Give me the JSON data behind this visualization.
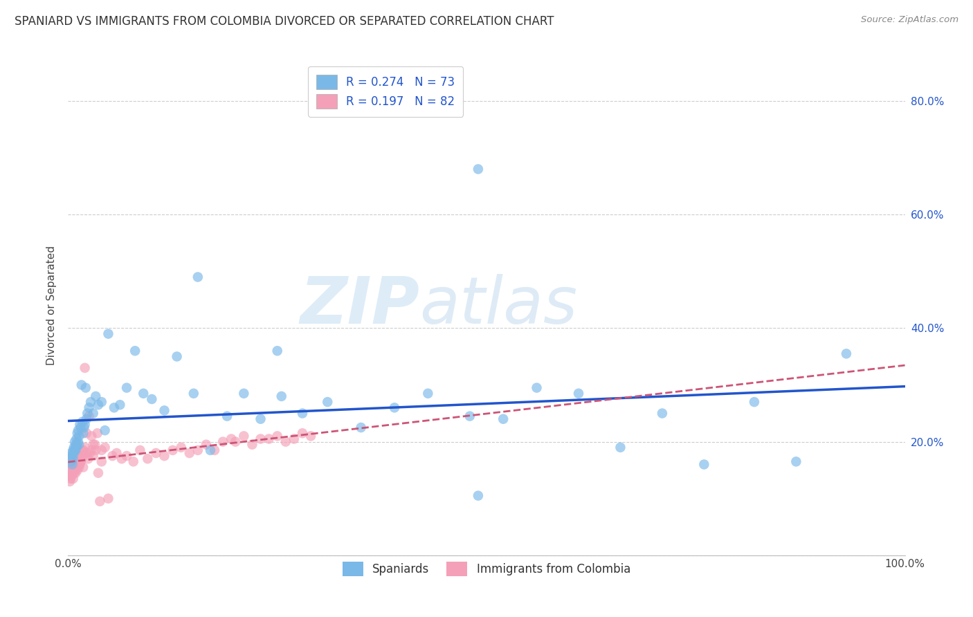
{
  "title": "SPANIARD VS IMMIGRANTS FROM COLOMBIA DIVORCED OR SEPARATED CORRELATION CHART",
  "source": "Source: ZipAtlas.com",
  "ylabel": "Divorced or Separated",
  "xlim": [
    0,
    1.0
  ],
  "ylim": [
    0,
    0.88
  ],
  "xticks": [
    0.0,
    0.2,
    0.4,
    0.6,
    0.8,
    1.0
  ],
  "yticks": [
    0.0,
    0.2,
    0.4,
    0.6,
    0.8
  ],
  "ytick_labels": [
    "",
    "20.0%",
    "40.0%",
    "60.0%",
    "80.0%"
  ],
  "xtick_labels": [
    "0.0%",
    "",
    "",
    "",
    "",
    "100.0%"
  ],
  "blue_color": "#7ab8e8",
  "pink_color": "#f4a0b8",
  "blue_line_color": "#2255cc",
  "pink_line_color": "#cc5577",
  "legend_r1": "R = 0.274",
  "legend_n1": "N = 73",
  "legend_r2": "R = 0.197",
  "legend_n2": "N = 82",
  "legend_label1": "Spaniards",
  "legend_label2": "Immigrants from Colombia",
  "watermark_zip": "ZIP",
  "watermark_atlas": "atlas",
  "background_color": "#ffffff",
  "grid_color": "#cccccc",
  "spaniards_x": [
    0.002,
    0.003,
    0.004,
    0.004,
    0.005,
    0.005,
    0.006,
    0.006,
    0.007,
    0.007,
    0.008,
    0.008,
    0.009,
    0.009,
    0.01,
    0.01,
    0.011,
    0.011,
    0.012,
    0.012,
    0.013,
    0.013,
    0.014,
    0.015,
    0.016,
    0.017,
    0.018,
    0.019,
    0.02,
    0.021,
    0.022,
    0.023,
    0.025,
    0.027,
    0.03,
    0.033,
    0.036,
    0.04,
    0.044,
    0.048,
    0.055,
    0.062,
    0.07,
    0.08,
    0.09,
    0.1,
    0.115,
    0.13,
    0.15,
    0.17,
    0.19,
    0.21,
    0.23,
    0.255,
    0.28,
    0.31,
    0.35,
    0.39,
    0.43,
    0.48,
    0.52,
    0.56,
    0.49,
    0.61,
    0.66,
    0.71,
    0.76,
    0.82,
    0.87,
    0.93,
    0.49,
    0.155,
    0.25
  ],
  "spaniards_y": [
    0.17,
    0.175,
    0.165,
    0.18,
    0.16,
    0.175,
    0.185,
    0.17,
    0.18,
    0.19,
    0.185,
    0.2,
    0.195,
    0.185,
    0.205,
    0.19,
    0.215,
    0.195,
    0.22,
    0.2,
    0.195,
    0.21,
    0.23,
    0.225,
    0.3,
    0.235,
    0.215,
    0.225,
    0.23,
    0.295,
    0.24,
    0.25,
    0.26,
    0.27,
    0.25,
    0.28,
    0.265,
    0.27,
    0.22,
    0.39,
    0.26,
    0.265,
    0.295,
    0.36,
    0.285,
    0.275,
    0.255,
    0.35,
    0.285,
    0.185,
    0.245,
    0.285,
    0.24,
    0.28,
    0.25,
    0.27,
    0.225,
    0.26,
    0.285,
    0.245,
    0.24,
    0.295,
    0.105,
    0.285,
    0.19,
    0.25,
    0.16,
    0.27,
    0.165,
    0.355,
    0.68,
    0.49,
    0.36
  ],
  "colombia_x": [
    0.001,
    0.002,
    0.002,
    0.003,
    0.003,
    0.004,
    0.004,
    0.005,
    0.005,
    0.006,
    0.006,
    0.007,
    0.007,
    0.008,
    0.008,
    0.009,
    0.009,
    0.01,
    0.01,
    0.011,
    0.011,
    0.012,
    0.012,
    0.013,
    0.013,
    0.014,
    0.014,
    0.015,
    0.016,
    0.017,
    0.018,
    0.019,
    0.02,
    0.022,
    0.024,
    0.026,
    0.028,
    0.03,
    0.033,
    0.036,
    0.04,
    0.044,
    0.048,
    0.053,
    0.058,
    0.064,
    0.07,
    0.078,
    0.086,
    0.095,
    0.105,
    0.115,
    0.125,
    0.135,
    0.145,
    0.155,
    0.165,
    0.175,
    0.185,
    0.195,
    0.2,
    0.21,
    0.22,
    0.23,
    0.24,
    0.25,
    0.26,
    0.27,
    0.28,
    0.29,
    0.02,
    0.025,
    0.03,
    0.035,
    0.022,
    0.015,
    0.032,
    0.018,
    0.028,
    0.04,
    0.012,
    0.038
  ],
  "colombia_y": [
    0.14,
    0.13,
    0.145,
    0.135,
    0.15,
    0.14,
    0.155,
    0.145,
    0.15,
    0.135,
    0.155,
    0.145,
    0.16,
    0.15,
    0.155,
    0.165,
    0.145,
    0.16,
    0.155,
    0.165,
    0.15,
    0.16,
    0.17,
    0.155,
    0.165,
    0.175,
    0.16,
    0.165,
    0.175,
    0.185,
    0.155,
    0.175,
    0.19,
    0.18,
    0.17,
    0.18,
    0.185,
    0.175,
    0.185,
    0.145,
    0.165,
    0.19,
    0.1,
    0.175,
    0.18,
    0.17,
    0.175,
    0.165,
    0.185,
    0.17,
    0.18,
    0.175,
    0.185,
    0.19,
    0.18,
    0.185,
    0.195,
    0.185,
    0.2,
    0.205,
    0.2,
    0.21,
    0.195,
    0.205,
    0.205,
    0.21,
    0.2,
    0.205,
    0.215,
    0.21,
    0.33,
    0.245,
    0.195,
    0.215,
    0.215,
    0.165,
    0.195,
    0.185,
    0.21,
    0.185,
    0.165,
    0.095
  ]
}
